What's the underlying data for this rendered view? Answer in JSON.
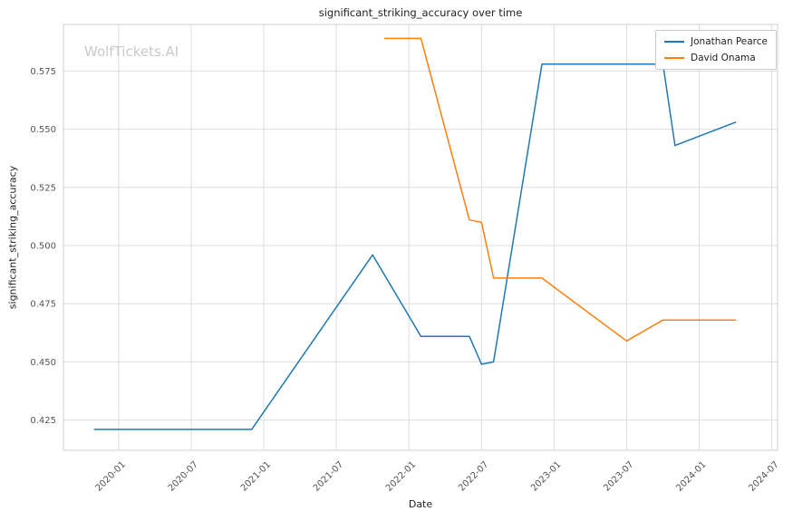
{
  "figure": {
    "title": "significant_striking_accuracy over time",
    "watermark": "WolfTickets.AI",
    "xlabel": "Date",
    "ylabel": "significant_striking_accuracy"
  },
  "chart_data": {
    "type": "line",
    "title": "significant_striking_accuracy over time",
    "xlabel": "Date",
    "ylabel": "significant_striking_accuracy",
    "grid": true,
    "legend_position": "upper right",
    "x_ticks": [
      "2020-01",
      "2020-07",
      "2021-01",
      "2021-07",
      "2022-01",
      "2022-07",
      "2023-01",
      "2023-07",
      "2024-01",
      "2024-07"
    ],
    "y_ticks": [
      0.425,
      0.45,
      0.475,
      0.5,
      0.525,
      0.55,
      0.575
    ],
    "xlim_decimal_years": [
      2019.62,
      2024.54
    ],
    "ylim": [
      0.412,
      0.595
    ],
    "colors": {
      "jonathan_pearce": "#1f77b4",
      "david_onama": "#ff7f0e",
      "grid": "#dddddd",
      "border": "#d0d0d0",
      "tick_text": "#555555"
    },
    "series": [
      {
        "name": "Jonathan Pearce",
        "color": "#1f77b4",
        "points": [
          [
            "2019-11",
            0.421
          ],
          [
            "2020-12",
            0.421
          ],
          [
            "2021-10",
            0.496
          ],
          [
            "2022-02",
            0.461
          ],
          [
            "2022-06",
            0.461
          ],
          [
            "2022-07",
            0.449
          ],
          [
            "2022-08",
            0.45
          ],
          [
            "2022-12",
            0.578
          ],
          [
            "2023-10",
            0.578
          ],
          [
            "2023-11",
            0.543
          ],
          [
            "2024-04",
            0.553
          ]
        ]
      },
      {
        "name": "David Onama",
        "color": "#ff7f0e",
        "points": [
          [
            "2021-11",
            0.589
          ],
          [
            "2022-02",
            0.589
          ],
          [
            "2022-06",
            0.511
          ],
          [
            "2022-07",
            0.51
          ],
          [
            "2022-08",
            0.486
          ],
          [
            "2022-12",
            0.486
          ],
          [
            "2023-07",
            0.459
          ],
          [
            "2023-10",
            0.468
          ],
          [
            "2024-04",
            0.468
          ]
        ]
      }
    ]
  }
}
